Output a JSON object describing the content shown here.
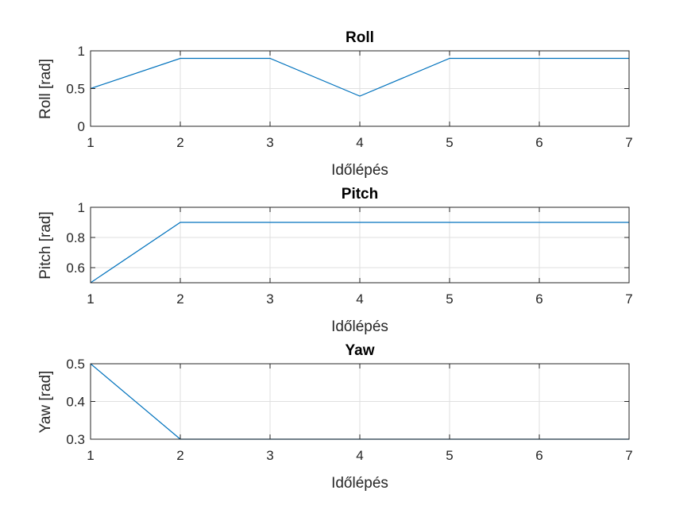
{
  "chart_data": [
    {
      "type": "line",
      "title": "Roll",
      "xlabel": "Időlépés",
      "ylabel": "Roll [rad]",
      "x": [
        1,
        2,
        3,
        4,
        5,
        6,
        7
      ],
      "values": [
        0.5,
        0.9,
        0.9,
        0.4,
        0.9,
        0.9,
        0.9
      ],
      "xlim": [
        1,
        7
      ],
      "ylim": [
        0,
        1
      ],
      "xticks": [
        1,
        2,
        3,
        4,
        5,
        6,
        7
      ],
      "yticks": [
        0,
        0.5,
        1
      ],
      "xtick_labels": [
        "1",
        "2",
        "3",
        "4",
        "5",
        "6",
        "7"
      ],
      "ytick_labels": [
        "0",
        "0.5",
        "1"
      ],
      "grid": true,
      "color": "#0072bd"
    },
    {
      "type": "line",
      "title": "Pitch",
      "xlabel": "Időlépés",
      "ylabel": "Pitch [rad]",
      "x": [
        1,
        2,
        3,
        4,
        5,
        6,
        7
      ],
      "values": [
        0.5,
        0.9,
        0.9,
        0.9,
        0.9,
        0.9,
        0.9
      ],
      "xlim": [
        1,
        7
      ],
      "ylim": [
        0.5,
        1
      ],
      "xticks": [
        1,
        2,
        3,
        4,
        5,
        6,
        7
      ],
      "yticks": [
        0.6,
        0.8,
        1
      ],
      "xtick_labels": [
        "1",
        "2",
        "3",
        "4",
        "5",
        "6",
        "7"
      ],
      "ytick_labels": [
        "0.6",
        "0.8",
        "1"
      ],
      "grid": true,
      "color": "#0072bd"
    },
    {
      "type": "line",
      "title": "Yaw",
      "xlabel": "Időlépés",
      "ylabel": "Yaw [rad]",
      "x": [
        1,
        2,
        3,
        4,
        5,
        6,
        7
      ],
      "values": [
        0.5,
        0.3,
        0.3,
        0.3,
        0.3,
        0.3,
        0.3
      ],
      "xlim": [
        1,
        7
      ],
      "ylim": [
        0.3,
        0.5
      ],
      "xticks": [
        1,
        2,
        3,
        4,
        5,
        6,
        7
      ],
      "yticks": [
        0.3,
        0.4,
        0.5
      ],
      "xtick_labels": [
        "1",
        "2",
        "3",
        "4",
        "5",
        "6",
        "7"
      ],
      "ytick_labels": [
        "0.3",
        "0.4",
        "0.5"
      ],
      "grid": true,
      "color": "#0072bd"
    }
  ]
}
